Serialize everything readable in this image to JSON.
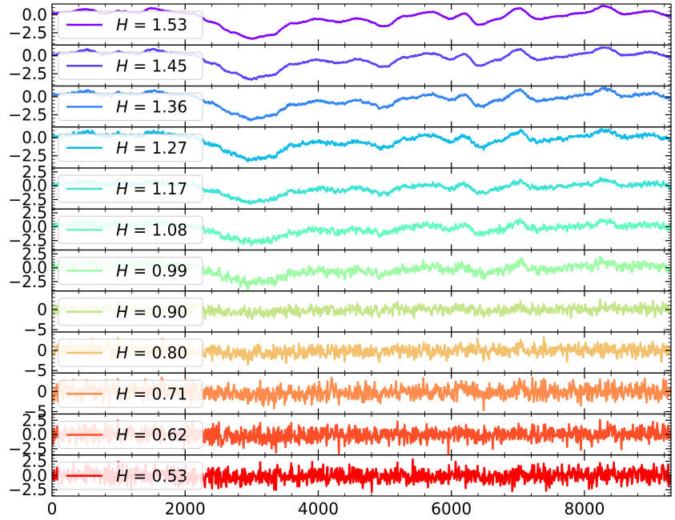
{
  "chart_data": {
    "type": "line",
    "layout": "stacked-panels",
    "title": "",
    "xlabel": "",
    "ylabel": "",
    "xlim": [
      0,
      9300
    ],
    "x_ticks": [
      0,
      2000,
      4000,
      6000,
      8000
    ],
    "x_tick_labels": [
      "0",
      "2000",
      "4000",
      "6000",
      "8000"
    ],
    "legend_location": "left",
    "grid": false,
    "series": [
      {
        "name": "H = 1.53",
        "h_value": "1.53",
        "color": "#8000ff",
        "ylim": [
          -4.2,
          1.5
        ],
        "y_ticks": [
          0.0,
          -2.5
        ],
        "y_tick_labels": [
          "0.0",
          "−2.5"
        ],
        "noise": 0.12
      },
      {
        "name": "H = 1.45",
        "h_value": "1.45",
        "color": "#5a40fc",
        "ylim": [
          -4.2,
          1.5
        ],
        "y_ticks": [
          0.0,
          -2.5
        ],
        "y_tick_labels": [
          "0.0",
          "−2.5"
        ],
        "noise": 0.18
      },
      {
        "name": "H = 1.36",
        "h_value": "1.36",
        "color": "#3283f6",
        "ylim": [
          -4.2,
          1.5
        ],
        "y_ticks": [
          0.0,
          -2.5
        ],
        "y_tick_labels": [
          "0.0",
          "−2.5"
        ],
        "noise": 0.28
      },
      {
        "name": "H = 1.27",
        "h_value": "1.27",
        "color": "#0cbbe9",
        "ylim": [
          -4.2,
          1.5
        ],
        "y_ticks": [
          0.0,
          -2.5
        ],
        "y_tick_labels": [
          "0.0",
          "−2.5"
        ],
        "noise": 0.4
      },
      {
        "name": "H = 1.17",
        "h_value": "1.17",
        "color": "#3be3d4",
        "ylim": [
          -4.2,
          3.2
        ],
        "y_ticks": [
          2.5,
          0.0,
          -2.5
        ],
        "y_tick_labels": [
          "2.5",
          "0.0",
          "−2.5"
        ],
        "noise": 0.55
      },
      {
        "name": "H = 1.08",
        "h_value": "1.08",
        "color": "#64fbbf",
        "ylim": [
          -4.2,
          3.2
        ],
        "y_ticks": [
          2.5,
          0.0,
          -2.5
        ],
        "y_tick_labels": [
          "2.5",
          "0.0",
          "−2.5"
        ],
        "noise": 0.75
      },
      {
        "name": "H = 0.99",
        "h_value": "0.99",
        "color": "#9cfba4",
        "ylim": [
          -4.2,
          3.2
        ],
        "y_ticks": [
          2.5,
          0.0,
          -2.5
        ],
        "y_tick_labels": [
          "2.5",
          "0.0",
          "−2.5"
        ],
        "noise": 1.0
      },
      {
        "name": "H = 0.90",
        "h_value": "0.90",
        "color": "#c4e589",
        "ylim": [
          -5.6,
          4.6
        ],
        "y_ticks": [
          0,
          -5
        ],
        "y_tick_labels": [
          "0",
          "−5"
        ],
        "noise": 1.25
      },
      {
        "name": "H = 0.80",
        "h_value": "0.80",
        "color": "#f3c16d",
        "ylim": [
          -5.6,
          4.6
        ],
        "y_ticks": [
          0,
          -5
        ],
        "y_tick_labels": [
          "0",
          "−5"
        ],
        "noise": 1.5
      },
      {
        "name": "H = 0.71",
        "h_value": "0.71",
        "color": "#ff8c4d",
        "ylim": [
          -5.6,
          4.6
        ],
        "y_ticks": [
          0,
          -5
        ],
        "y_tick_labels": [
          "0",
          "−5"
        ],
        "noise": 1.8
      },
      {
        "name": "H = 0.62",
        "h_value": "0.62",
        "color": "#ff4e28",
        "ylim": [
          -3.6,
          3.6
        ],
        "y_ticks": [
          2.5,
          0.0,
          -2.5
        ],
        "y_tick_labels": [
          "2.5",
          "0.0",
          "−2.5"
        ],
        "noise": 1.35
      },
      {
        "name": "H = 0.53",
        "h_value": "0.53",
        "color": "#ff0000",
        "ylim": [
          -3.6,
          3.6
        ],
        "y_ticks": [
          2.5,
          0.0,
          -2.5
        ],
        "y_tick_labels": [
          "2.5",
          "0.0",
          "−2.5"
        ],
        "noise": 1.4
      }
    ]
  }
}
